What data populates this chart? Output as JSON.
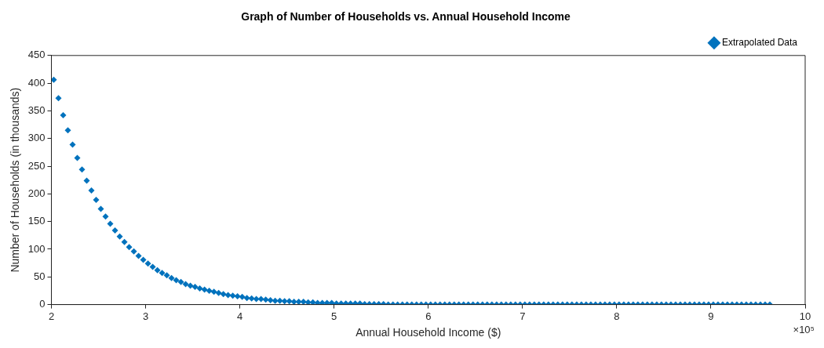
{
  "chart_data": {
    "type": "scatter",
    "title": "Graph of Number of Households vs. Annual Household Income",
    "xlabel": "Annual Household Income ($)",
    "ylabel": "Number of Households (in thousands)",
    "annotations": [
      "×10⁵"
    ],
    "xlim": [
      2,
      10
    ],
    "xticks": [
      2,
      3,
      4,
      5,
      6,
      7,
      8,
      9,
      10
    ],
    "ylim": [
      0,
      450
    ],
    "yticks": [
      0,
      50,
      100,
      150,
      200,
      250,
      300,
      350,
      400,
      450
    ],
    "grid": false,
    "legend": "top right",
    "marker": "diamond",
    "series": [
      {
        "name": "Extrapolated Data",
        "color": "#0072bd",
        "x": [
          2.025,
          2.075,
          2.125,
          2.175,
          2.225,
          2.275,
          2.325,
          2.375,
          2.425,
          2.475,
          2.525,
          2.575,
          2.625,
          2.675,
          2.725,
          2.775,
          2.825,
          2.875,
          2.925,
          2.975,
          3.025,
          3.075,
          3.125,
          3.175,
          3.225,
          3.275,
          3.325,
          3.375,
          3.425,
          3.475,
          3.525,
          3.575,
          3.625,
          3.675,
          3.725,
          3.775,
          3.825,
          3.875,
          3.925,
          3.975,
          4.025,
          4.075,
          4.125,
          4.175,
          4.225,
          4.275,
          4.325,
          4.375,
          4.425,
          4.475,
          4.525,
          4.575,
          4.625,
          4.675,
          4.725,
          4.775,
          4.825,
          4.875,
          4.925,
          4.975,
          5.025,
          5.075,
          5.125,
          5.175,
          5.225,
          5.275,
          5.325,
          5.375,
          5.425,
          5.475,
          5.525,
          5.575,
          5.625,
          5.675,
          5.725,
          5.775,
          5.825,
          5.875,
          5.925,
          5.975,
          6.025,
          6.075,
          6.125,
          6.175,
          6.225,
          6.275,
          6.325,
          6.375,
          6.425,
          6.475,
          6.525,
          6.575,
          6.625,
          6.675,
          6.725,
          6.775,
          6.825,
          6.875,
          6.925,
          6.975,
          7.025,
          7.075,
          7.125,
          7.175,
          7.225,
          7.275,
          7.325,
          7.375,
          7.425,
          7.475,
          7.525,
          7.575,
          7.625,
          7.675,
          7.725,
          7.775,
          7.825,
          7.875,
          7.925,
          7.975,
          8.025,
          8.075,
          8.125,
          8.175,
          8.225,
          8.275,
          8.325,
          8.375,
          8.425,
          8.475,
          8.525,
          8.575,
          8.625,
          8.675,
          8.725,
          8.775,
          8.825,
          8.875,
          8.925,
          8.975,
          9.025,
          9.075,
          9.125,
          9.175,
          9.225,
          9.275,
          9.325,
          9.375,
          9.425,
          9.475,
          9.525,
          9.575,
          9.625
        ],
        "values": [
          406,
          373,
          342,
          315,
          289,
          265,
          244,
          224,
          206,
          189,
          173,
          159,
          146,
          134,
          123,
          113,
          104,
          96,
          88,
          81,
          74,
          68,
          62,
          57,
          53,
          48,
          44,
          41,
          37,
          34,
          32,
          29,
          27,
          25,
          23,
          21,
          19,
          17,
          16,
          15,
          14,
          12,
          11,
          10,
          10,
          9,
          8,
          7,
          7,
          6,
          6,
          5,
          5,
          5,
          4,
          4,
          3,
          3,
          3,
          3,
          2,
          2,
          2,
          2,
          2,
          2,
          1,
          1,
          1,
          1,
          1,
          0,
          0,
          0,
          0,
          0,
          0,
          0,
          0,
          0,
          0,
          0,
          0,
          0,
          0,
          0,
          0,
          0,
          0,
          0,
          0,
          0,
          0,
          0,
          0,
          0,
          0,
          0,
          0,
          0,
          0,
          0,
          0,
          0,
          0,
          0,
          0,
          0,
          0,
          0,
          0,
          0,
          0,
          0,
          0,
          0,
          0,
          0,
          0,
          0,
          0,
          0,
          0,
          0,
          0,
          0,
          0,
          0,
          0,
          0,
          0,
          0,
          0,
          0,
          0,
          0,
          0,
          0,
          0,
          0,
          0,
          0,
          0,
          0,
          0,
          0,
          0,
          0,
          0,
          0,
          0,
          0,
          0
        ]
      }
    ]
  }
}
